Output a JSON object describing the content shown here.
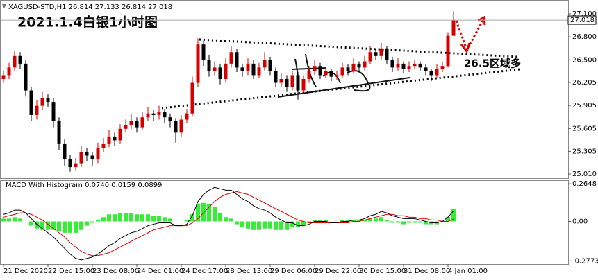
{
  "chart_data": [
    {
      "type": "candlestick",
      "title": "XAGUSD-STD,H1  26.814 27.133 26.814 27.018",
      "annotations": [
        "2021.1.4白银1小时图",
        "26.5区域多"
      ],
      "categories": [
        "21 Dec 2020",
        null,
        null,
        null,
        null,
        null,
        null,
        null,
        "22 Dec 15:00",
        null,
        null,
        null,
        null,
        null,
        null,
        null,
        "23 Dec 08:00",
        null,
        null,
        null,
        null,
        null,
        null,
        null,
        "24 Dec 01:00",
        null,
        null,
        null,
        null,
        null,
        null,
        null,
        "24 Dec 17:00",
        null,
        null,
        null,
        null,
        null,
        null,
        null,
        "28 Dec 13:00",
        null,
        null,
        null,
        null,
        null,
        null,
        null,
        "29 Dec 06:00",
        null,
        null,
        null,
        null,
        null,
        null,
        null,
        "29 Dec 22:00",
        null,
        null,
        null,
        null,
        null,
        null,
        null,
        "30 Dec 15:00",
        null,
        null,
        null,
        null,
        null,
        null,
        null,
        "31 Dec 08:00",
        null,
        null,
        null,
        null,
        null,
        null,
        null,
        "4 Jan 01:00",
        null
      ],
      "ohlc": [
        [
          26.25,
          26.36,
          26.2,
          26.3
        ],
        [
          26.3,
          26.46,
          26.25,
          26.4
        ],
        [
          26.4,
          26.62,
          26.35,
          26.55
        ],
        [
          26.55,
          26.6,
          26.38,
          26.45
        ],
        [
          26.45,
          26.5,
          26.02,
          26.1
        ],
        [
          26.1,
          26.15,
          25.7,
          25.78
        ],
        [
          25.78,
          25.97,
          25.72,
          25.9
        ],
        [
          25.9,
          26.08,
          25.85,
          26.0
        ],
        [
          26.0,
          26.05,
          25.88,
          25.95
        ],
        [
          25.95,
          26.0,
          25.62,
          25.7
        ],
        [
          25.7,
          25.75,
          25.32,
          25.4
        ],
        [
          25.4,
          25.46,
          25.12,
          25.2
        ],
        [
          25.2,
          25.26,
          25.04,
          25.1
        ],
        [
          25.1,
          25.22,
          25.05,
          25.15
        ],
        [
          25.15,
          25.38,
          25.1,
          25.3
        ],
        [
          25.3,
          25.35,
          25.18,
          25.25
        ],
        [
          25.25,
          25.3,
          25.12,
          25.2
        ],
        [
          25.2,
          25.42,
          25.15,
          25.35
        ],
        [
          25.35,
          25.48,
          25.3,
          25.4
        ],
        [
          25.4,
          25.58,
          25.36,
          25.5
        ],
        [
          25.5,
          25.55,
          25.38,
          25.45
        ],
        [
          25.45,
          25.66,
          25.4,
          25.6
        ],
        [
          25.6,
          25.72,
          25.55,
          25.65
        ],
        [
          25.65,
          25.8,
          25.6,
          25.7
        ],
        [
          25.7,
          25.75,
          25.55,
          25.62
        ],
        [
          25.62,
          25.82,
          25.58,
          25.75
        ],
        [
          25.75,
          25.88,
          25.7,
          25.8
        ],
        [
          25.8,
          25.85,
          25.7,
          25.78
        ],
        [
          25.78,
          25.9,
          25.72,
          25.82
        ],
        [
          25.82,
          25.86,
          25.68,
          25.75
        ],
        [
          25.75,
          25.8,
          25.62,
          25.7
        ],
        [
          25.7,
          25.74,
          25.42,
          25.55
        ],
        [
          25.55,
          25.78,
          25.5,
          25.72
        ],
        [
          25.72,
          25.86,
          25.68,
          25.8
        ],
        [
          25.8,
          26.28,
          25.76,
          26.2
        ],
        [
          26.2,
          26.78,
          26.15,
          26.7
        ],
        [
          26.7,
          26.75,
          26.42,
          26.5
        ],
        [
          26.5,
          26.56,
          26.28,
          26.35
        ],
        [
          26.35,
          26.48,
          26.3,
          26.4
        ],
        [
          26.4,
          26.45,
          26.18,
          26.25
        ],
        [
          26.25,
          26.52,
          26.2,
          26.45
        ],
        [
          26.45,
          26.68,
          26.4,
          26.6
        ],
        [
          26.6,
          26.64,
          26.34,
          26.4
        ],
        [
          26.4,
          26.45,
          26.28,
          26.35
        ],
        [
          26.35,
          26.52,
          26.3,
          26.45
        ],
        [
          26.45,
          26.5,
          26.25,
          26.3
        ],
        [
          26.3,
          26.46,
          26.26,
          26.4
        ],
        [
          26.4,
          26.6,
          26.36,
          26.5
        ],
        [
          26.5,
          26.54,
          26.3,
          26.35
        ],
        [
          26.35,
          26.4,
          26.14,
          26.2
        ],
        [
          26.2,
          26.32,
          26.15,
          26.25
        ],
        [
          26.25,
          26.3,
          26.08,
          26.15
        ],
        [
          26.15,
          26.36,
          26.1,
          26.3
        ],
        [
          26.3,
          26.34,
          25.98,
          26.1
        ],
        [
          26.1,
          26.3,
          26.05,
          26.25
        ],
        [
          26.25,
          26.42,
          26.2,
          26.35
        ],
        [
          26.35,
          26.5,
          26.3,
          26.42
        ],
        [
          26.42,
          26.46,
          26.25,
          26.3
        ],
        [
          26.3,
          26.4,
          26.26,
          26.35
        ],
        [
          26.35,
          26.38,
          26.22,
          26.28
        ],
        [
          26.28,
          26.36,
          26.24,
          26.3
        ],
        [
          26.3,
          26.46,
          26.26,
          26.4
        ],
        [
          26.4,
          26.44,
          26.3,
          26.35
        ],
        [
          26.35,
          26.52,
          26.32,
          26.45
        ],
        [
          26.45,
          26.48,
          26.34,
          26.4
        ],
        [
          26.4,
          26.55,
          26.36,
          26.48
        ],
        [
          26.48,
          26.68,
          26.44,
          26.6
        ],
        [
          26.6,
          26.64,
          26.5,
          26.55
        ],
        [
          26.55,
          26.72,
          26.5,
          26.65
        ],
        [
          26.65,
          26.68,
          26.45,
          26.5
        ],
        [
          26.5,
          26.54,
          26.34,
          26.4
        ],
        [
          26.4,
          26.52,
          26.36,
          26.45
        ],
        [
          26.45,
          26.48,
          26.32,
          26.38
        ],
        [
          26.38,
          26.48,
          26.34,
          26.42
        ],
        [
          26.42,
          26.5,
          26.38,
          26.45
        ],
        [
          26.45,
          26.48,
          26.35,
          26.4
        ],
        [
          26.4,
          26.44,
          26.3,
          26.35
        ],
        [
          26.35,
          26.38,
          26.22,
          26.3
        ],
        [
          26.3,
          26.44,
          26.27,
          26.38
        ],
        [
          26.38,
          26.48,
          26.34,
          26.42
        ],
        [
          26.42,
          26.86,
          26.4,
          26.814
        ],
        [
          26.814,
          27.133,
          26.814,
          27.018
        ]
      ],
      "up_color": "#d40000",
      "down_color": "#000000",
      "last_price": 27.018,
      "ylim": [
        24.956,
        27.281
      ],
      "yticks": [
        {
          "value": 27.1,
          "label": "27.100"
        },
        {
          "value": 26.8,
          "label": "26.800"
        },
        {
          "value": 26.5,
          "label": "26.500"
        },
        26.205,
        25.905,
        25.605,
        25.305,
        {
          "value": 25.01,
          "label": "25.010"
        }
      ]
    },
    {
      "type": "macd",
      "title": "MACD With Histogram 0.0740 0.0159 0.0899",
      "histogram": {
        "color": "#33ee33",
        "values": [
          0.02,
          0.02,
          0.03,
          0.02,
          0.0,
          -0.03,
          -0.05,
          -0.06,
          -0.06,
          -0.06,
          -0.07,
          -0.08,
          -0.08,
          -0.08,
          -0.06,
          -0.03,
          -0.01,
          0.01,
          0.03,
          0.05,
          0.05,
          0.06,
          0.06,
          0.06,
          0.05,
          0.05,
          0.05,
          0.04,
          0.04,
          0.03,
          0.02,
          0.0,
          0.0,
          0.01,
          0.05,
          0.12,
          0.13,
          0.12,
          0.1,
          0.06,
          0.03,
          0.02,
          -0.02,
          -0.04,
          -0.05,
          -0.06,
          -0.06,
          -0.05,
          -0.05,
          -0.06,
          -0.06,
          -0.06,
          -0.04,
          -0.04,
          -0.03,
          -0.01,
          0.01,
          0.01,
          0.01,
          0.0,
          0.0,
          0.01,
          0.01,
          0.01,
          0.01,
          0.01,
          0.02,
          0.02,
          0.03,
          0.01,
          -0.01,
          -0.01,
          -0.02,
          -0.01,
          -0.01,
          -0.01,
          -0.02,
          -0.02,
          -0.02,
          0.0,
          0.03,
          0.0899
        ]
      },
      "macd": {
        "color": "#000000",
        "values": [
          0.05,
          0.06,
          0.08,
          0.08,
          0.06,
          0.02,
          -0.02,
          -0.05,
          -0.08,
          -0.11,
          -0.15,
          -0.19,
          -0.23,
          -0.26,
          -0.27,
          -0.26,
          -0.25,
          -0.23,
          -0.2,
          -0.17,
          -0.15,
          -0.12,
          -0.1,
          -0.08,
          -0.07,
          -0.05,
          -0.03,
          -0.02,
          -0.01,
          -0.01,
          -0.01,
          -0.03,
          -0.03,
          -0.02,
          0.04,
          0.14,
          0.19,
          0.22,
          0.24,
          0.23,
          0.22,
          0.22,
          0.19,
          0.16,
          0.14,
          0.11,
          0.09,
          0.08,
          0.06,
          0.03,
          0.01,
          -0.01,
          -0.01,
          -0.03,
          -0.03,
          -0.02,
          0.0,
          0.0,
          0.0,
          -0.01,
          -0.01,
          0.0,
          0.0,
          0.01,
          0.01,
          0.02,
          0.04,
          0.05,
          0.07,
          0.06,
          0.04,
          0.03,
          0.02,
          0.02,
          0.02,
          0.01,
          0.0,
          -0.01,
          -0.01,
          0.0,
          0.03,
          0.074
        ]
      },
      "signal": {
        "color": "#e00000",
        "values": [
          0.03,
          0.04,
          0.05,
          0.06,
          0.06,
          0.05,
          0.03,
          0.01,
          -0.02,
          -0.05,
          -0.08,
          -0.11,
          -0.15,
          -0.18,
          -0.21,
          -0.23,
          -0.24,
          -0.24,
          -0.23,
          -0.22,
          -0.2,
          -0.18,
          -0.16,
          -0.14,
          -0.12,
          -0.1,
          -0.08,
          -0.06,
          -0.05,
          -0.04,
          -0.03,
          -0.03,
          -0.03,
          -0.03,
          -0.01,
          0.02,
          0.06,
          0.1,
          0.14,
          0.17,
          0.19,
          0.2,
          0.21,
          0.2,
          0.19,
          0.17,
          0.15,
          0.13,
          0.11,
          0.09,
          0.07,
          0.05,
          0.03,
          0.01,
          0.0,
          -0.01,
          -0.01,
          -0.01,
          -0.01,
          -0.01,
          -0.01,
          -0.01,
          -0.01,
          0.0,
          0.0,
          0.01,
          0.02,
          0.03,
          0.04,
          0.05,
          0.05,
          0.04,
          0.04,
          0.03,
          0.03,
          0.02,
          0.02,
          0.01,
          0.01,
          0.0,
          0.0,
          0.0159
        ]
      },
      "ylim": [
        -0.3,
        0.29
      ],
      "yticks": [
        0.2648,
        {
          "value": 0,
          "label": "0.00"
        },
        -0.2773
      ]
    }
  ]
}
